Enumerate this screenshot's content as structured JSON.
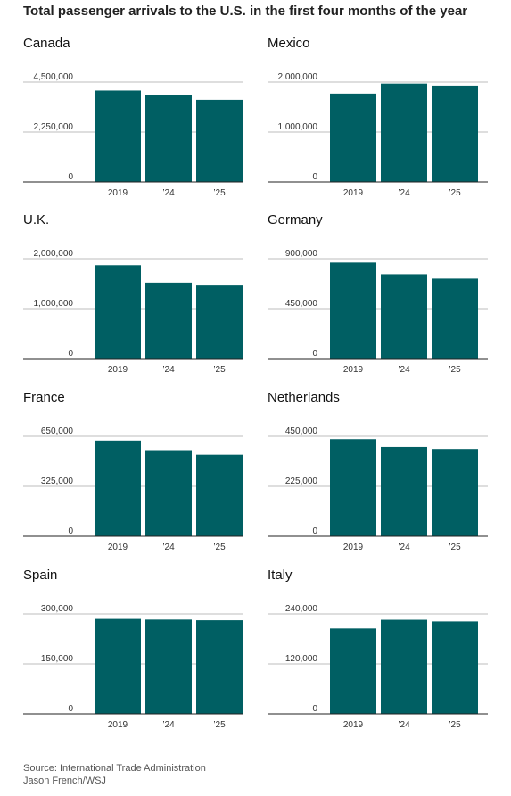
{
  "title": "Total passenger arrivals to the U.S. in the first four months of the year",
  "source": "Source: International Trade Administration",
  "credit": "Jason French/WSJ",
  "bar_color": "#005F63",
  "chart_data": [
    {
      "type": "bar",
      "title": "Canada",
      "categories": [
        "2019",
        "’24",
        "’25"
      ],
      "values": [
        4120000,
        3900000,
        3700000
      ],
      "ylim": [
        0,
        4500000
      ],
      "ticks": [
        0,
        2250000,
        4500000
      ],
      "tick_labels": [
        "0",
        "2,250,000",
        "4,500,000"
      ]
    },
    {
      "type": "bar",
      "title": "Mexico",
      "categories": [
        "2019",
        "’24",
        "’25"
      ],
      "values": [
        1770000,
        1970000,
        1930000
      ],
      "ylim": [
        0,
        2000000
      ],
      "ticks": [
        0,
        1000000,
        2000000
      ],
      "tick_labels": [
        "0",
        "1,000,000",
        "2,000,000"
      ]
    },
    {
      "type": "bar",
      "title": "U.K.",
      "categories": [
        "2019",
        "’24",
        "’25"
      ],
      "values": [
        1870000,
        1520000,
        1480000
      ],
      "ylim": [
        0,
        2000000
      ],
      "ticks": [
        0,
        1000000,
        2000000
      ],
      "tick_labels": [
        "0",
        "1,000,000",
        "2,000,000"
      ]
    },
    {
      "type": "bar",
      "title": "Germany",
      "categories": [
        "2019",
        "’24",
        "’25"
      ],
      "values": [
        865000,
        760000,
        720000
      ],
      "ylim": [
        0,
        900000
      ],
      "ticks": [
        0,
        450000,
        900000
      ],
      "tick_labels": [
        "0",
        "450,000",
        "900,000"
      ]
    },
    {
      "type": "bar",
      "title": "France",
      "categories": [
        "2019",
        "’24",
        "’25"
      ],
      "values": [
        622000,
        560000,
        530000
      ],
      "ylim": [
        0,
        650000
      ],
      "ticks": [
        0,
        325000,
        650000
      ],
      "tick_labels": [
        "0",
        "325,000",
        "650,000"
      ]
    },
    {
      "type": "bar",
      "title": "Netherlands",
      "categories": [
        "2019",
        "’24",
        "’25"
      ],
      "values": [
        437000,
        402000,
        393000
      ],
      "ylim": [
        0,
        450000
      ],
      "ticks": [
        0,
        225000,
        450000
      ],
      "tick_labels": [
        "0",
        "225,000",
        "450,000"
      ]
    },
    {
      "type": "bar",
      "title": "Spain",
      "categories": [
        "2019",
        "’24",
        "’25"
      ],
      "values": [
        285000,
        283000,
        281000
      ],
      "ylim": [
        0,
        300000
      ],
      "ticks": [
        0,
        150000,
        300000
      ],
      "tick_labels": [
        "0",
        "150,000",
        "300,000"
      ]
    },
    {
      "type": "bar",
      "title": "Italy",
      "categories": [
        "2019",
        "’24",
        "’25"
      ],
      "values": [
        205000,
        226000,
        222000
      ],
      "ylim": [
        0,
        240000
      ],
      "ticks": [
        0,
        120000,
        240000
      ],
      "tick_labels": [
        "0",
        "120,000",
        "240,000"
      ]
    }
  ]
}
